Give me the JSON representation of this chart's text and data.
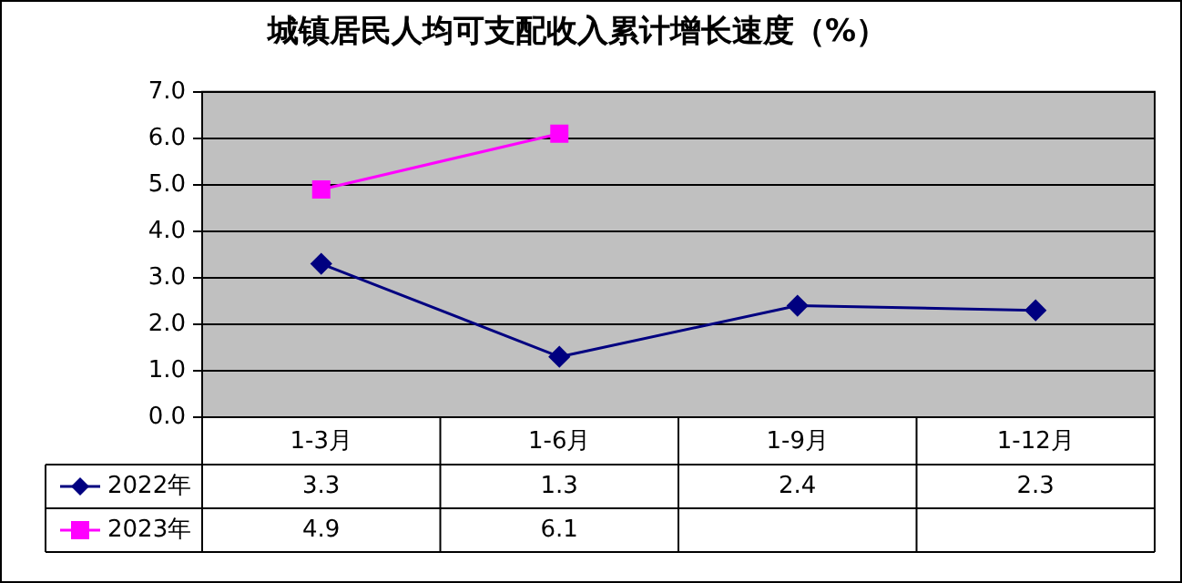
{
  "chart_data": {
    "type": "line",
    "title": "城镇居民人均可支配收入累计增长速度（%）",
    "categories": [
      "1-3月",
      "1-6月",
      "1-9月",
      "1-12月"
    ],
    "series": [
      {
        "name": "2022年",
        "color": "#000080",
        "marker": "diamond",
        "values": [
          3.3,
          1.3,
          2.4,
          2.3
        ]
      },
      {
        "name": "2023年",
        "color": "#ff00ff",
        "marker": "square",
        "values": [
          4.9,
          6.1,
          null,
          null
        ]
      }
    ],
    "ylim": [
      0,
      7
    ],
    "yticks": [
      {
        "value": 0,
        "label": "0.0"
      },
      {
        "value": 1,
        "label": "1.0"
      },
      {
        "value": 2,
        "label": "2.0"
      },
      {
        "value": 3,
        "label": "3.0"
      },
      {
        "value": 4,
        "label": "4.0"
      },
      {
        "value": 5,
        "label": "5.0"
      },
      {
        "value": 6,
        "label": "6.0"
      },
      {
        "value": 7,
        "label": "7.0"
      }
    ],
    "grid": "y",
    "legend": "bottom",
    "data_labels": true,
    "line_style": "solid"
  }
}
